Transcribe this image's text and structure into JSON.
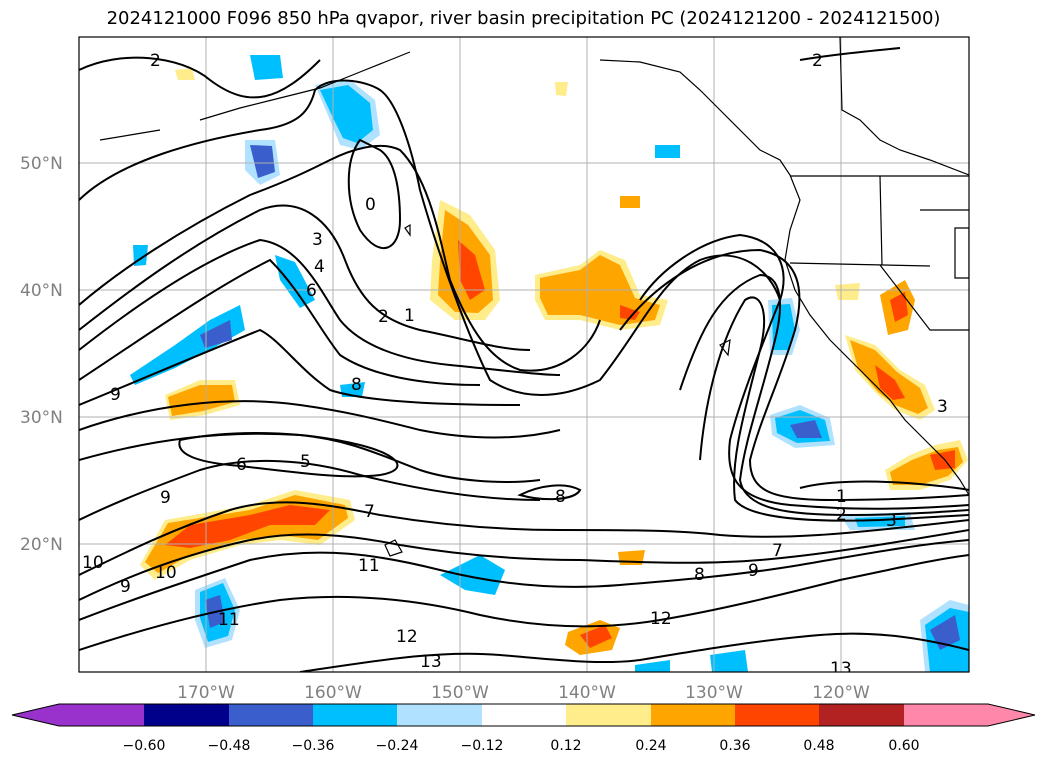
{
  "title": "2024121000 F096 850 hPa qvapor, river basin precipitation PC (2024121200 - 2024121500)",
  "lat_labels": [
    "50°N",
    "40°N",
    "30°N",
    "20°N"
  ],
  "lon_labels": [
    "170°W",
    "160°W",
    "150°W",
    "140°W",
    "130°W",
    "120°W"
  ],
  "contour_labels": [
    "2",
    "2",
    "0",
    "3",
    "4",
    "6",
    "2",
    "1",
    "8",
    "9",
    "6",
    "5",
    "9",
    "7",
    "10",
    "9",
    "11",
    "10",
    "11",
    "12",
    "13",
    "8",
    "7",
    "8",
    "9",
    "12",
    "13",
    "1",
    "2",
    "3",
    "3"
  ],
  "colorbar": {
    "ticks": [
      "−0.60",
      "−0.48",
      "−0.36",
      "−0.24",
      "−0.12",
      "0.12",
      "0.24",
      "0.36",
      "0.48",
      "0.60"
    ],
    "colors": [
      "#9932cc",
      "#00008b",
      "#3a5fcd",
      "#00bfff",
      "#b0e2ff",
      "#ffffff",
      "#ffec8b",
      "#ffa500",
      "#ff4500",
      "#b22222",
      "#ff88aa"
    ]
  }
}
